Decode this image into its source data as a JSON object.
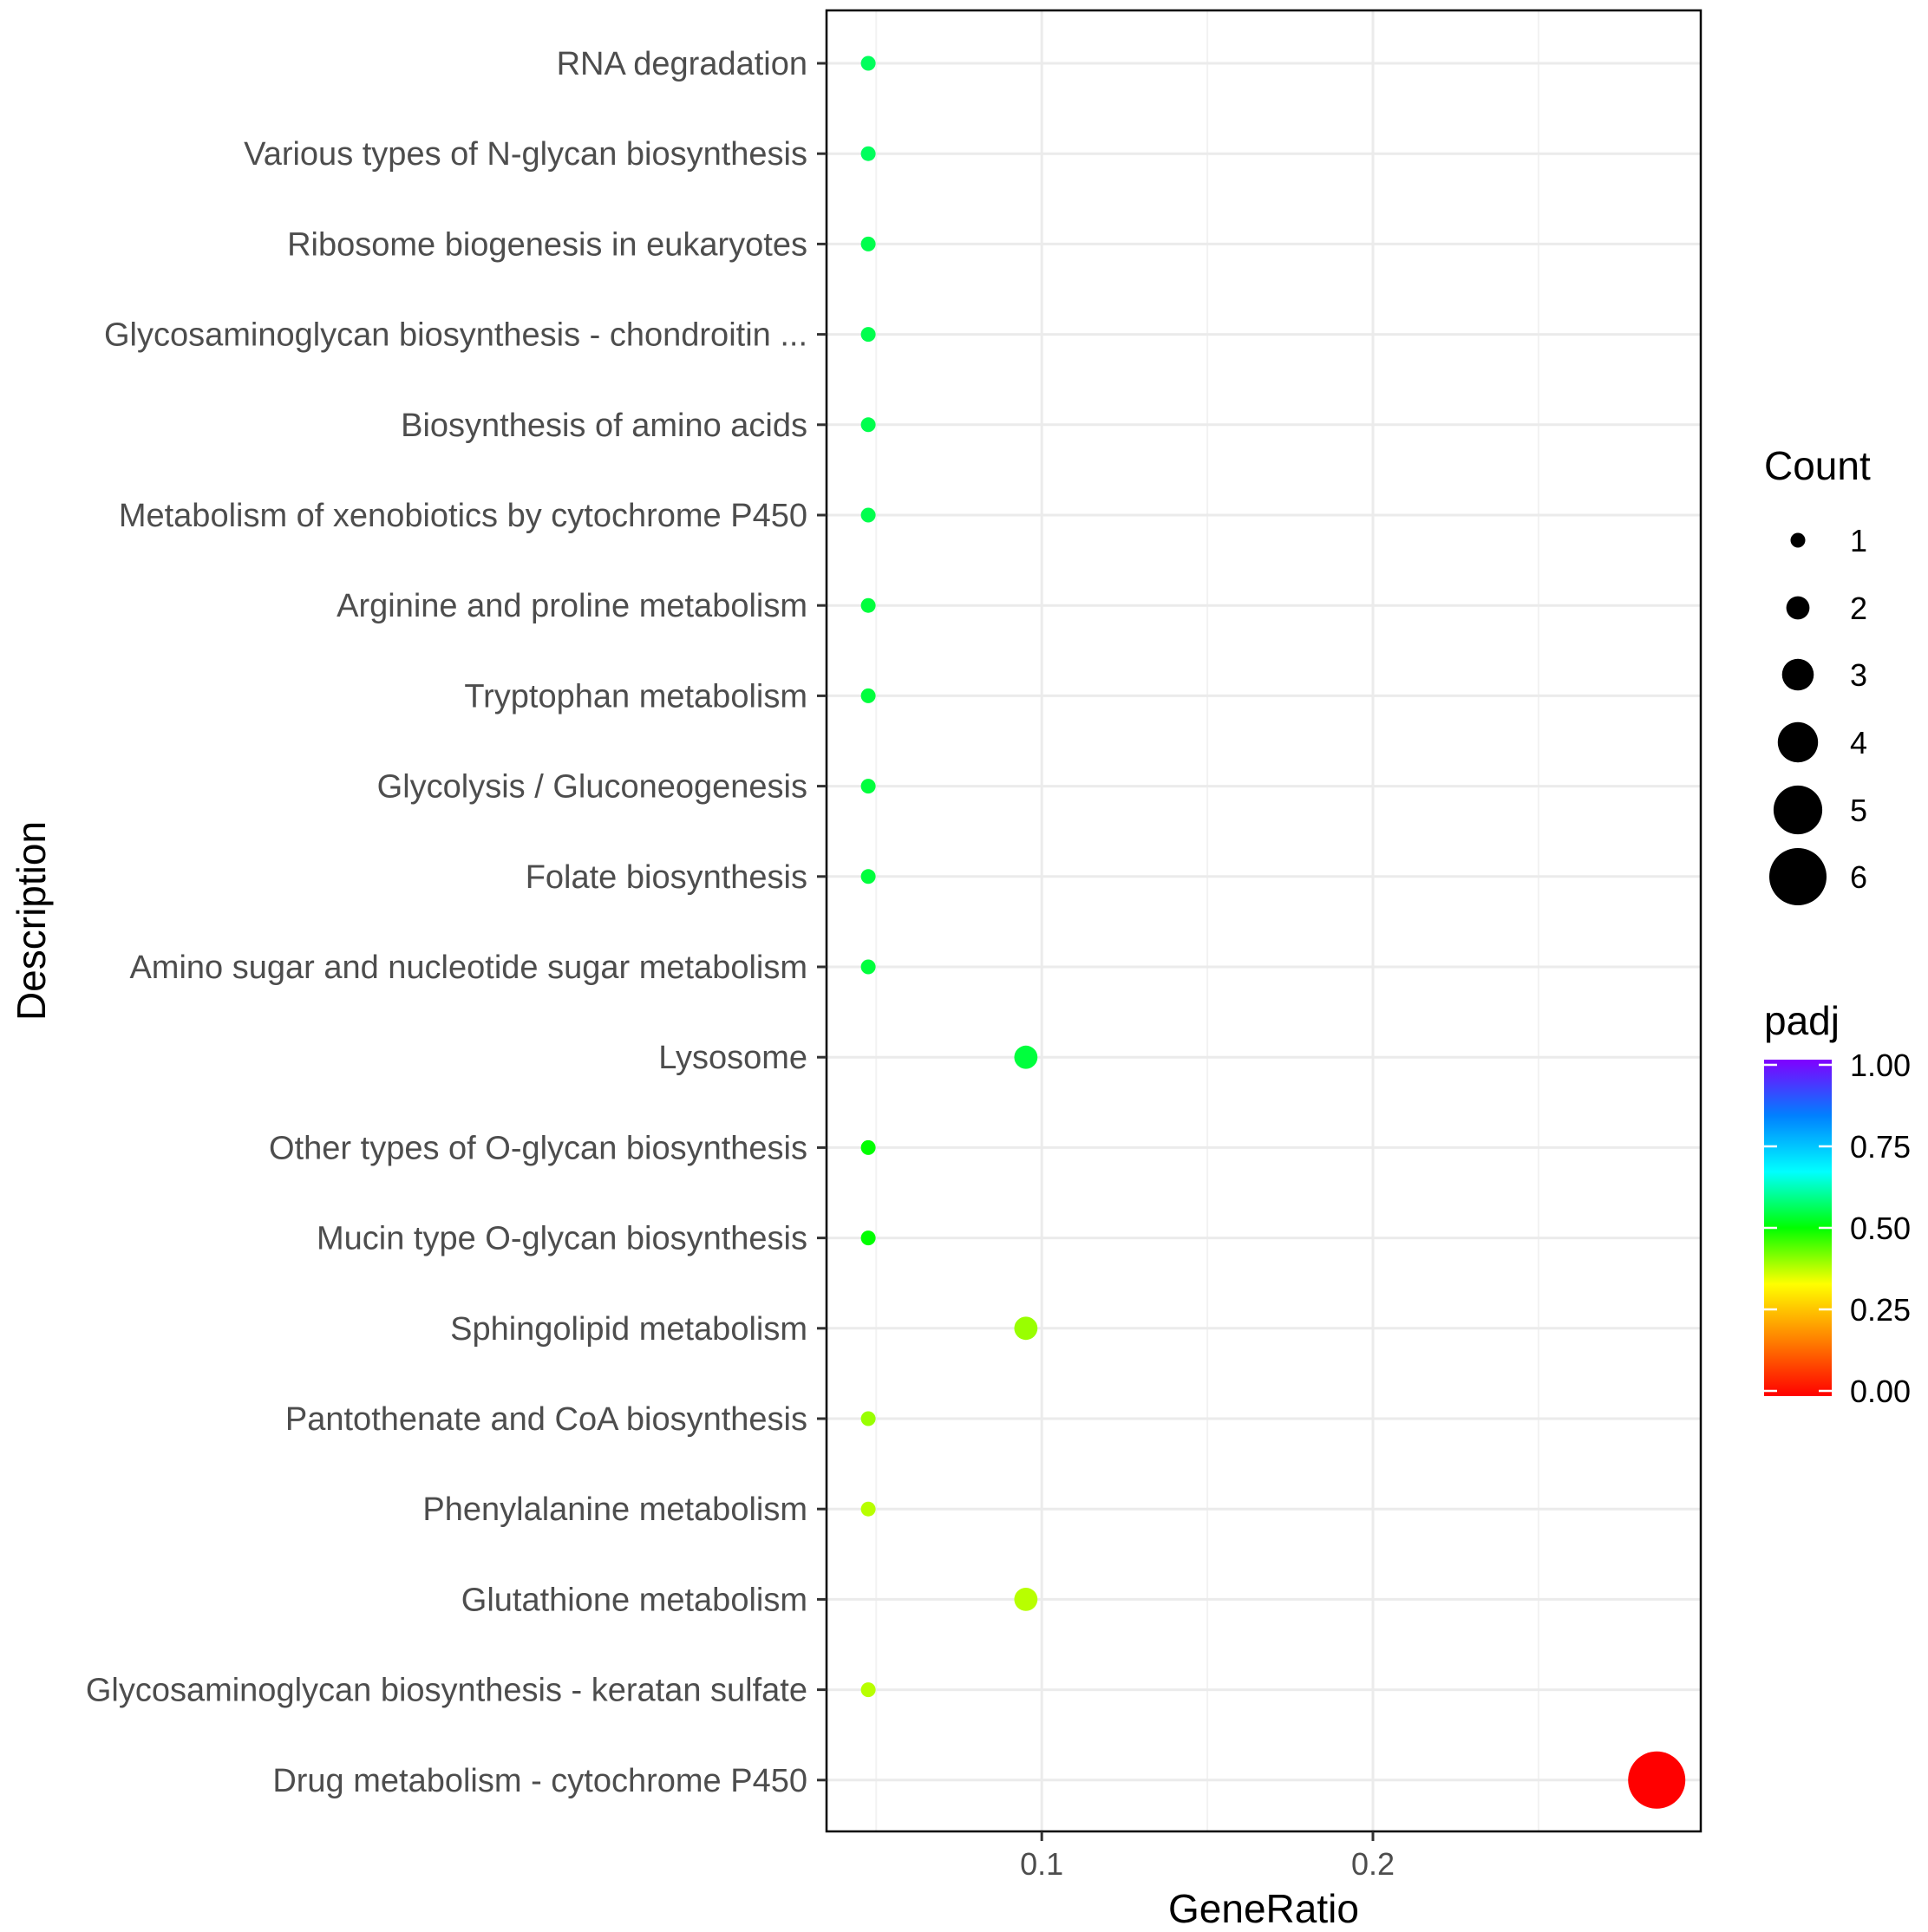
{
  "chart_data": {
    "type": "scatter",
    "xlabel": "GeneRatio",
    "ylabel": "Description",
    "xlim": [
      0.035,
      0.299
    ],
    "x_ticks": [
      0.1,
      0.2
    ],
    "x_tick_labels": [
      "0.1",
      "0.2"
    ],
    "grid": true,
    "categories": [
      "RNA degradation",
      "Various types of N-glycan biosynthesis",
      "Ribosome biogenesis in eukaryotes",
      "Glycosaminoglycan biosynthesis - chondroitin ...",
      "Biosynthesis of amino acids",
      "Metabolism of xenobiotics by cytochrome P450",
      "Arginine and proline metabolism",
      "Tryptophan metabolism",
      "Glycolysis / Gluconeogenesis",
      "Folate biosynthesis",
      "Amino sugar and nucleotide sugar metabolism",
      "Lysosome",
      "Other types of O-glycan biosynthesis",
      "Mucin type O-glycan biosynthesis",
      "Sphingolipid metabolism",
      "Pantothenate and CoA biosynthesis",
      "Phenylalanine metabolism",
      "Glutathione metabolism",
      "Glycosaminoglycan biosynthesis - keratan sulfate",
      "Drug metabolism - cytochrome P450"
    ],
    "gene_ratio": [
      0.0476,
      0.0476,
      0.0476,
      0.0476,
      0.0476,
      0.0476,
      0.0476,
      0.0476,
      0.0476,
      0.0476,
      0.0476,
      0.0952,
      0.0476,
      0.0476,
      0.0952,
      0.0476,
      0.0476,
      0.0952,
      0.0476,
      0.2857
    ],
    "count": [
      1,
      1,
      1,
      1,
      1,
      1,
      1,
      1,
      1,
      1,
      1,
      2,
      1,
      1,
      2,
      1,
      1,
      2,
      1,
      6
    ],
    "padj": [
      0.56,
      0.56,
      0.55,
      0.55,
      0.55,
      0.55,
      0.54,
      0.54,
      0.54,
      0.54,
      0.54,
      0.54,
      0.5,
      0.5,
      0.4,
      0.4,
      0.38,
      0.38,
      0.38,
      0.0
    ],
    "size_legend": {
      "title": "Count",
      "values": [
        1,
        2,
        3,
        4,
        5,
        6
      ],
      "labels": [
        "1",
        "2",
        "3",
        "4",
        "5",
        "6"
      ]
    },
    "color_legend": {
      "title": "padj",
      "range": [
        0,
        1
      ],
      "ticks": [
        1.0,
        0.75,
        0.5,
        0.25,
        0.0
      ],
      "labels": [
        "1.00",
        "0.75",
        "0.50",
        "0.25",
        "0.00"
      ],
      "colors": [
        "#ff0000",
        "#ff8000",
        "#ffff00",
        "#00ff00",
        "#00ffff",
        "#0080ff",
        "#8000ff"
      ]
    },
    "legend_position": "right"
  }
}
